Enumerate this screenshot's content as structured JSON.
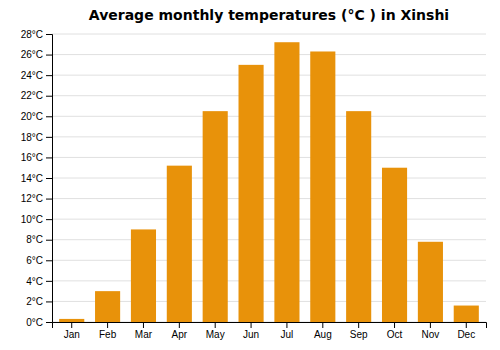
{
  "chart_data": {
    "type": "bar",
    "title": "Average monthly temperatures (°C ) in Xinshi",
    "categories": [
      "Jan",
      "Feb",
      "Mar",
      "Apr",
      "May",
      "Jun",
      "Jul",
      "Aug",
      "Sep",
      "Oct",
      "Nov",
      "Dec"
    ],
    "values": [
      0.3,
      3.0,
      9.0,
      15.2,
      20.5,
      25.0,
      27.2,
      26.3,
      20.5,
      15.0,
      7.8,
      1.6
    ],
    "color": "#E8920A",
    "ylim": [
      0,
      28
    ],
    "yticks": [
      {
        "value": 0,
        "label": "0°C"
      },
      {
        "value": 2,
        "label": "2°C"
      },
      {
        "value": 4,
        "label": "4°C"
      },
      {
        "value": 6,
        "label": "6°C"
      },
      {
        "value": 8,
        "label": "8°C"
      },
      {
        "value": 10,
        "label": "10°C"
      },
      {
        "value": 12,
        "label": "12°C"
      },
      {
        "value": 14,
        "label": "14°C"
      },
      {
        "value": 16,
        "label": "16°C"
      },
      {
        "value": 18,
        "label": "18°C"
      },
      {
        "value": 20,
        "label": "20°C"
      },
      {
        "value": 22,
        "label": "22°C"
      },
      {
        "value": 24,
        "label": "24°C"
      },
      {
        "value": 26,
        "label": "26°C"
      },
      {
        "value": 28,
        "label": "28°C"
      }
    ],
    "grid": true
  }
}
